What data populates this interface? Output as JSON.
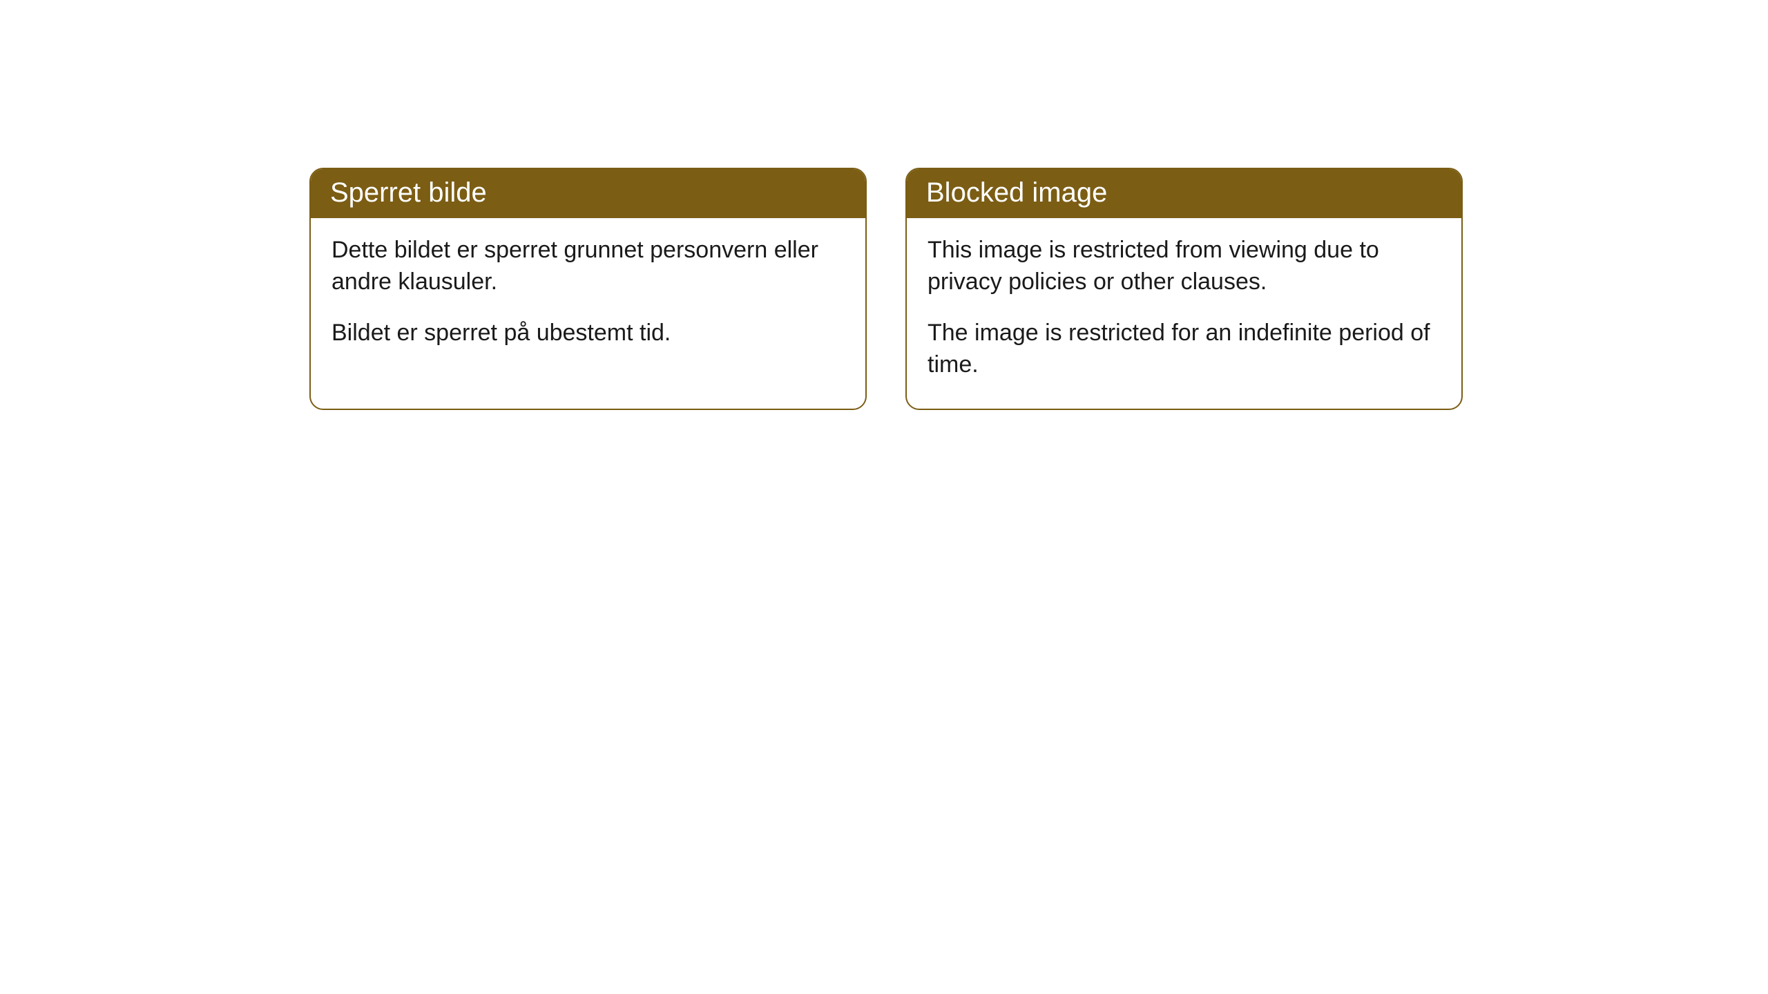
{
  "cards": [
    {
      "header": "Sperret bilde",
      "paragraph1": "Dette bildet er sperret grunnet personvern eller andre klausuler.",
      "paragraph2": "Bildet er sperret på ubestemt tid."
    },
    {
      "header": "Blocked image",
      "paragraph1": "This image is restricted from viewing due to privacy policies or other clauses.",
      "paragraph2": "The image is restricted for an indefinite period of time."
    }
  ],
  "styling": {
    "header_bg_color": "#7b5d14",
    "header_text_color": "#ffffff",
    "border_color": "#7b5d14",
    "body_text_color": "#1a1a1a",
    "background_color": "#ffffff",
    "border_radius": 20,
    "header_fontsize": 40,
    "body_fontsize": 34
  }
}
